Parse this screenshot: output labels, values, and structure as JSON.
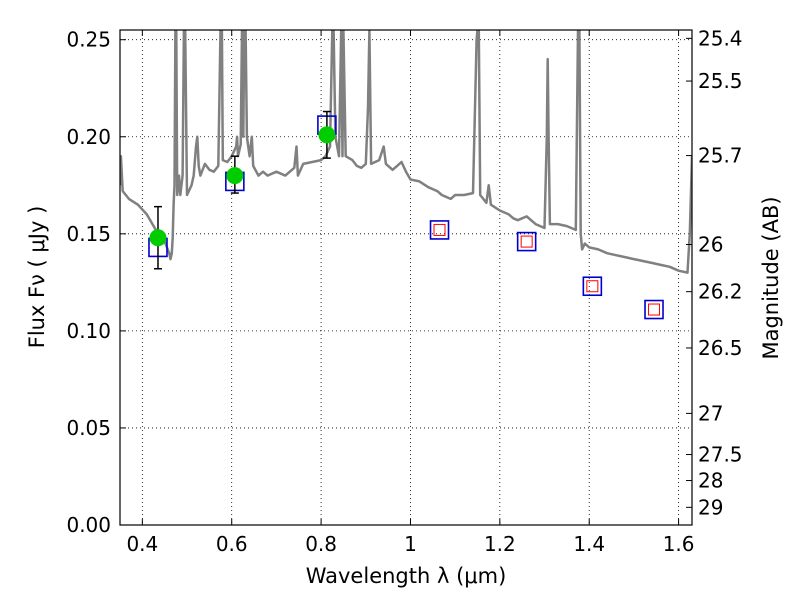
{
  "chart_data": {
    "type": "scatter",
    "xlabel": "Wavelength  λ (μm)",
    "ylabel": "Flux  Fν  ( μJy )",
    "ylabel_right": "Magnitude (AB)",
    "xlim": [
      0.35,
      1.63
    ],
    "ylim": [
      0.0,
      0.255
    ],
    "grid": true,
    "x_ticks": [
      0.4,
      0.6,
      0.8,
      1.0,
      1.2,
      1.4,
      1.6
    ],
    "x_tick_labels": [
      "0.4",
      "0.6",
      "0.8",
      "1",
      "1.2",
      "1.4",
      "1.6"
    ],
    "y_ticks": [
      0.0,
      0.05,
      0.1,
      0.15,
      0.2,
      0.25
    ],
    "y_tick_labels": [
      "0.00",
      "0.05",
      "0.10",
      "0.15",
      "0.20",
      "0.25"
    ],
    "right_ticks": [
      {
        "label": "25.4",
        "flux": 0.2507
      },
      {
        "label": "25.5",
        "flux": 0.2287
      },
      {
        "label": "25.7",
        "flux": 0.1903
      },
      {
        "label": "26",
        "flux": 0.1445
      },
      {
        "label": "26.2",
        "flux": 0.1202
      },
      {
        "label": "26.5",
        "flux": 0.0912
      },
      {
        "label": "27",
        "flux": 0.0575
      },
      {
        "label": "27.5",
        "flux": 0.0363
      },
      {
        "label": "28",
        "flux": 0.0229
      },
      {
        "label": "29",
        "flux": 0.0091
      }
    ],
    "series": [
      {
        "name": "model_spectrum",
        "kind": "line",
        "color": "#808080",
        "points": [
          [
            0.35,
            0.175
          ],
          [
            0.352,
            0.19
          ],
          [
            0.356,
            0.172
          ],
          [
            0.37,
            0.168
          ],
          [
            0.39,
            0.165
          ],
          [
            0.41,
            0.16
          ],
          [
            0.43,
            0.152
          ],
          [
            0.45,
            0.146
          ],
          [
            0.46,
            0.14
          ],
          [
            0.463,
            0.137
          ],
          [
            0.466,
            0.14
          ],
          [
            0.468,
            0.148
          ],
          [
            0.47,
            0.165
          ],
          [
            0.472,
            0.175
          ],
          [
            0.474,
            0.255
          ],
          [
            0.476,
            0.255
          ],
          [
            0.478,
            0.17
          ],
          [
            0.482,
            0.18
          ],
          [
            0.485,
            0.17
          ],
          [
            0.49,
            0.18
          ],
          [
            0.493,
            0.255
          ],
          [
            0.496,
            0.255
          ],
          [
            0.5,
            0.17
          ],
          [
            0.51,
            0.175
          ],
          [
            0.515,
            0.18
          ],
          [
            0.52,
            0.195
          ],
          [
            0.523,
            0.2
          ],
          [
            0.526,
            0.185
          ],
          [
            0.53,
            0.18
          ],
          [
            0.54,
            0.186
          ],
          [
            0.55,
            0.183
          ],
          [
            0.56,
            0.182
          ],
          [
            0.57,
            0.185
          ],
          [
            0.575,
            0.255
          ],
          [
            0.578,
            0.255
          ],
          [
            0.58,
            0.188
          ],
          [
            0.59,
            0.187
          ],
          [
            0.6,
            0.19
          ],
          [
            0.61,
            0.195
          ],
          [
            0.612,
            0.2
          ],
          [
            0.614,
            0.19
          ],
          [
            0.62,
            0.196
          ],
          [
            0.623,
            0.255
          ],
          [
            0.626,
            0.2
          ],
          [
            0.628,
            0.255
          ],
          [
            0.631,
            0.255
          ],
          [
            0.634,
            0.2
          ],
          [
            0.64,
            0.19
          ],
          [
            0.645,
            0.2
          ],
          [
            0.648,
            0.185
          ],
          [
            0.66,
            0.18
          ],
          [
            0.67,
            0.182
          ],
          [
            0.68,
            0.18
          ],
          [
            0.7,
            0.182
          ],
          [
            0.72,
            0.18
          ],
          [
            0.74,
            0.184
          ],
          [
            0.745,
            0.195
          ],
          [
            0.748,
            0.18
          ],
          [
            0.76,
            0.186
          ],
          [
            0.78,
            0.187
          ],
          [
            0.8,
            0.188
          ],
          [
            0.81,
            0.19
          ],
          [
            0.82,
            0.195
          ],
          [
            0.825,
            0.255
          ],
          [
            0.828,
            0.255
          ],
          [
            0.832,
            0.2
          ],
          [
            0.84,
            0.19
          ],
          [
            0.845,
            0.255
          ],
          [
            0.848,
            0.19
          ],
          [
            0.85,
            0.255
          ],
          [
            0.855,
            0.19
          ],
          [
            0.87,
            0.188
          ],
          [
            0.88,
            0.185
          ],
          [
            0.89,
            0.184
          ],
          [
            0.9,
            0.186
          ],
          [
            0.905,
            0.215
          ],
          [
            0.908,
            0.255
          ],
          [
            0.912,
            0.186
          ],
          [
            0.93,
            0.188
          ],
          [
            0.94,
            0.195
          ],
          [
            0.945,
            0.186
          ],
          [
            0.96,
            0.183
          ],
          [
            0.97,
            0.185
          ],
          [
            0.98,
            0.187
          ],
          [
            0.99,
            0.182
          ],
          [
            1.0,
            0.178
          ],
          [
            1.02,
            0.177
          ],
          [
            1.04,
            0.174
          ],
          [
            1.06,
            0.172
          ],
          [
            1.07,
            0.17
          ],
          [
            1.09,
            0.168
          ],
          [
            1.1,
            0.17
          ],
          [
            1.12,
            0.17
          ],
          [
            1.14,
            0.171
          ],
          [
            1.148,
            0.25
          ],
          [
            1.15,
            0.255
          ],
          [
            1.153,
            0.255
          ],
          [
            1.156,
            0.17
          ],
          [
            1.17,
            0.166
          ],
          [
            1.175,
            0.175
          ],
          [
            1.18,
            0.165
          ],
          [
            1.2,
            0.162
          ],
          [
            1.22,
            0.16
          ],
          [
            1.23,
            0.158
          ],
          [
            1.24,
            0.157
          ],
          [
            1.26,
            0.159
          ],
          [
            1.28,
            0.155
          ],
          [
            1.3,
            0.153
          ],
          [
            1.305,
            0.2
          ],
          [
            1.307,
            0.24
          ],
          [
            1.309,
            0.2
          ],
          [
            1.312,
            0.155
          ],
          [
            1.33,
            0.155
          ],
          [
            1.35,
            0.154
          ],
          [
            1.36,
            0.153
          ],
          [
            1.37,
            0.152
          ],
          [
            1.375,
            0.255
          ],
          [
            1.378,
            0.255
          ],
          [
            1.381,
            0.15
          ],
          [
            1.384,
            0.142
          ],
          [
            1.39,
            0.145
          ],
          [
            1.4,
            0.143
          ],
          [
            1.42,
            0.142
          ],
          [
            1.44,
            0.14
          ],
          [
            1.46,
            0.139
          ],
          [
            1.48,
            0.138
          ],
          [
            1.5,
            0.137
          ],
          [
            1.52,
            0.136
          ],
          [
            1.54,
            0.135
          ],
          [
            1.56,
            0.134
          ],
          [
            1.58,
            0.133
          ],
          [
            1.6,
            0.131
          ],
          [
            1.62,
            0.13
          ],
          [
            1.622,
            0.138
          ],
          [
            1.625,
            0.15
          ],
          [
            1.63,
            0.19
          ]
        ]
      },
      {
        "name": "model_bandpass_fluxes",
        "kind": "hollow-square",
        "edgecolor": "#0000cc",
        "points": [
          [
            0.435,
            0.143
          ],
          [
            0.607,
            0.177
          ],
          [
            0.813,
            0.206
          ],
          [
            1.065,
            0.152
          ],
          [
            1.26,
            0.146
          ],
          [
            1.407,
            0.123
          ],
          [
            1.545,
            0.111
          ]
        ]
      },
      {
        "name": "observed_photometry",
        "kind": "filled-circle",
        "color": "#00cc00",
        "points": [
          [
            0.435,
            0.148
          ],
          [
            0.607,
            0.18
          ],
          [
            0.813,
            0.201
          ]
        ],
        "errors": [
          [
            0.132,
            0.164
          ],
          [
            0.171,
            0.19
          ],
          [
            0.189,
            0.213
          ]
        ]
      },
      {
        "name": "upper_limits",
        "kind": "small-hollow-square",
        "edgecolor": "#ff0000",
        "points": [
          [
            1.065,
            0.152
          ],
          [
            1.26,
            0.146
          ],
          [
            1.407,
            0.123
          ],
          [
            1.545,
            0.111
          ]
        ]
      }
    ]
  }
}
